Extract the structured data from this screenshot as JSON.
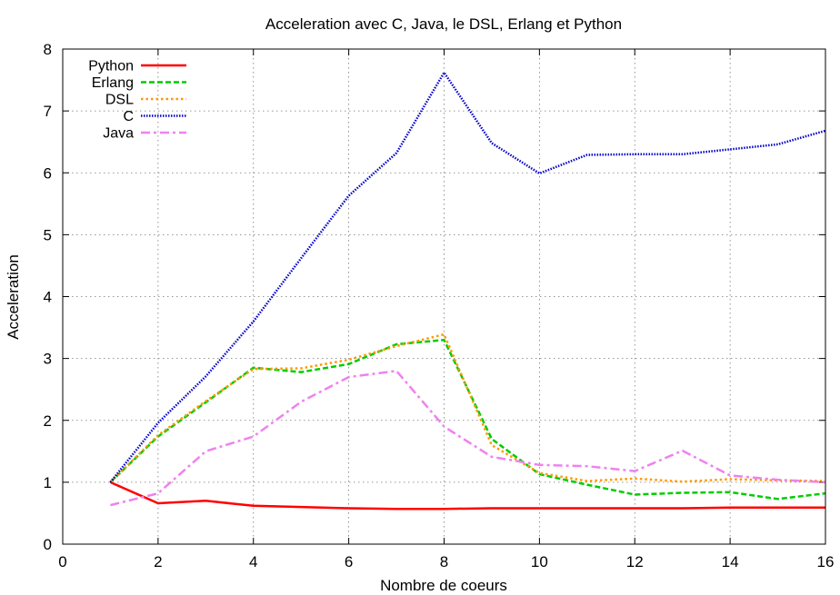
{
  "chart_data": {
    "type": "line",
    "title": "Acceleration avec C, Java, le DSL, Erlang et Python",
    "xlabel": "Nombre de coeurs",
    "ylabel": "Acceleration",
    "xlim": [
      0,
      16
    ],
    "ylim": [
      0,
      8
    ],
    "xticks": [
      0,
      2,
      4,
      6,
      8,
      10,
      12,
      14,
      16
    ],
    "yticks": [
      0,
      1,
      2,
      3,
      4,
      5,
      6,
      7,
      8
    ],
    "grid": true,
    "legend_position": "top-left",
    "series": [
      {
        "name": "Python",
        "color": "#ff0000",
        "style": "solid",
        "x": [
          1,
          2,
          3,
          4,
          5,
          6,
          7,
          8,
          9,
          10,
          11,
          12,
          13,
          14,
          15,
          16
        ],
        "y": [
          1.0,
          0.66,
          0.7,
          0.62,
          0.6,
          0.58,
          0.57,
          0.57,
          0.58,
          0.58,
          0.58,
          0.58,
          0.58,
          0.59,
          0.59,
          0.59
        ]
      },
      {
        "name": "Erlang",
        "color": "#00cc00",
        "style": "dashed",
        "x": [
          1,
          2,
          3,
          4,
          5,
          6,
          7,
          8,
          9,
          10,
          11,
          12,
          13,
          14,
          15,
          16
        ],
        "y": [
          1.0,
          1.74,
          2.29,
          2.85,
          2.78,
          2.91,
          3.23,
          3.3,
          1.7,
          1.13,
          0.96,
          0.8,
          0.83,
          0.84,
          0.73,
          0.82
        ]
      },
      {
        "name": "DSL",
        "color": "#ff9900",
        "style": "dotted",
        "x": [
          1,
          2,
          3,
          4,
          5,
          6,
          7,
          8,
          9,
          10,
          11,
          12,
          13,
          14,
          15,
          16
        ],
        "y": [
          1.0,
          1.76,
          2.31,
          2.83,
          2.84,
          2.98,
          3.2,
          3.39,
          1.6,
          1.15,
          1.02,
          1.06,
          1.01,
          1.05,
          1.03,
          1.02
        ]
      },
      {
        "name": "C",
        "color": "#0000cc",
        "style": "fine-dotted",
        "x": [
          1,
          2,
          3,
          4,
          5,
          6,
          7,
          8,
          9,
          10,
          11,
          12,
          13,
          14,
          15,
          16
        ],
        "y": [
          1.0,
          1.96,
          2.71,
          3.6,
          4.62,
          5.63,
          6.32,
          7.62,
          6.48,
          5.99,
          6.29,
          6.3,
          6.3,
          6.38,
          6.46,
          6.68
        ]
      },
      {
        "name": "Java",
        "color": "#ee82ee",
        "style": "dash-dot",
        "x": [
          1,
          2,
          3,
          4,
          5,
          6,
          7,
          8,
          9,
          10,
          11,
          12,
          13,
          14,
          15,
          16
        ],
        "y": [
          0.63,
          0.82,
          1.5,
          1.74,
          2.3,
          2.7,
          2.8,
          1.9,
          1.41,
          1.28,
          1.26,
          1.18,
          1.51,
          1.11,
          1.04,
          1.0
        ]
      }
    ]
  }
}
